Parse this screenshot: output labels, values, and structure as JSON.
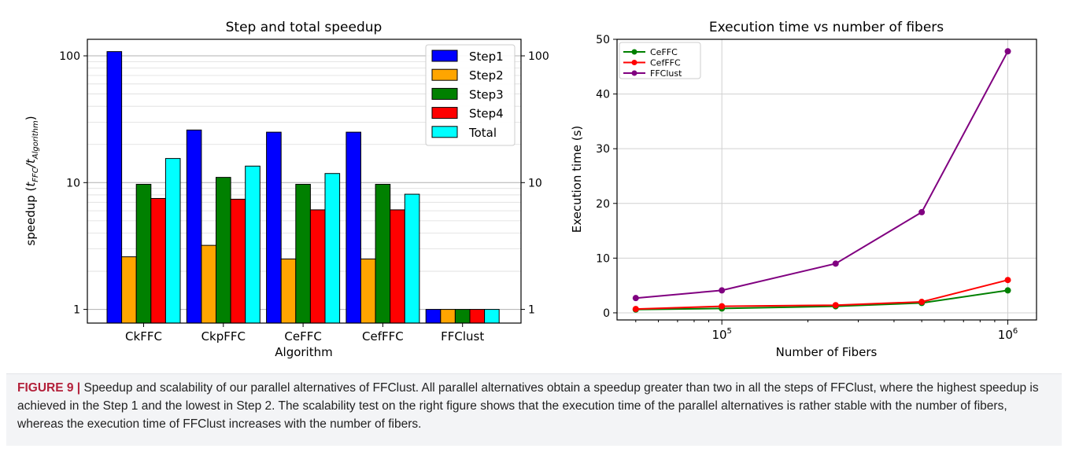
{
  "chart_data": [
    {
      "type": "bar",
      "title": "Step and total speedup",
      "xlabel": "Algorithm",
      "ylabel_prefix": "speedup (",
      "ylabel_t1": "t",
      "ylabel_sub1": "FFC",
      "ylabel_slash": "/",
      "ylabel_t2": "t",
      "ylabel_sub2": "Algorithm",
      "ylabel_suffix": ")",
      "yscale": "log",
      "ylim": [
        0.78,
        135
      ],
      "yticks": [
        1,
        10,
        100
      ],
      "ytick_labels": [
        "1",
        "10",
        "100"
      ],
      "right_axis_mirror": true,
      "legend_position": "top-right",
      "categories": [
        "CkFFC",
        "CkpFFC",
        "CeFFC",
        "CefFFC",
        "FFClust"
      ],
      "series": [
        {
          "name": "Step1",
          "color": "#0000ff",
          "values": [
            108,
            26,
            25,
            25,
            1
          ]
        },
        {
          "name": "Step2",
          "color": "#ffa500",
          "values": [
            2.6,
            3.2,
            2.5,
            2.5,
            1
          ]
        },
        {
          "name": "Step3",
          "color": "#008000",
          "values": [
            9.7,
            11,
            9.7,
            9.7,
            1
          ]
        },
        {
          "name": "Step4",
          "color": "#ff0000",
          "values": [
            7.5,
            7.4,
            6.1,
            6.1,
            1
          ]
        },
        {
          "name": "Total",
          "color": "#00ffff",
          "values": [
            15.5,
            13.5,
            11.8,
            8.1,
            1
          ]
        }
      ]
    },
    {
      "type": "line",
      "title": "Execution time vs number of fibers",
      "xlabel": "Number of Fibers",
      "ylabel": "Execution time (s)",
      "xscale": "log",
      "xlim": [
        43000,
        1260000
      ],
      "ylim": [
        -1.3,
        50
      ],
      "yticks": [
        0,
        10,
        20,
        30,
        40,
        50
      ],
      "xticks": [
        {
          "value": 100000,
          "base": "10",
          "exp": "5"
        },
        {
          "value": 1000000,
          "base": "10",
          "exp": "6"
        }
      ],
      "grid": true,
      "legend_position": "top-left",
      "x": [
        50000,
        100000,
        250000,
        500000,
        1000000
      ],
      "series": [
        {
          "name": "CeFFC",
          "color": "#008000",
          "values": [
            0.6,
            0.8,
            1.2,
            1.8,
            4.1
          ]
        },
        {
          "name": "CefFFC",
          "color": "#ff0000",
          "values": [
            0.7,
            1.2,
            1.4,
            2.0,
            6.0
          ]
        },
        {
          "name": "FFClust",
          "color": "#800080",
          "values": [
            2.7,
            4.1,
            9.0,
            18.4,
            47.8
          ]
        }
      ]
    }
  ],
  "caption": {
    "label": "FIGURE 9 |",
    "text": " Speedup and scalability of our parallel alternatives of FFClust. All parallel alternatives obtain a speedup greater than two in all the steps of FFClust, where the highest speedup is achieved in the Step 1 and the lowest in Step 2. The scalability test on the right figure shows that the execution time of the parallel alternatives is rather stable with the number of fibers, whereas the execution time of FFClust increases with the number of fibers."
  }
}
